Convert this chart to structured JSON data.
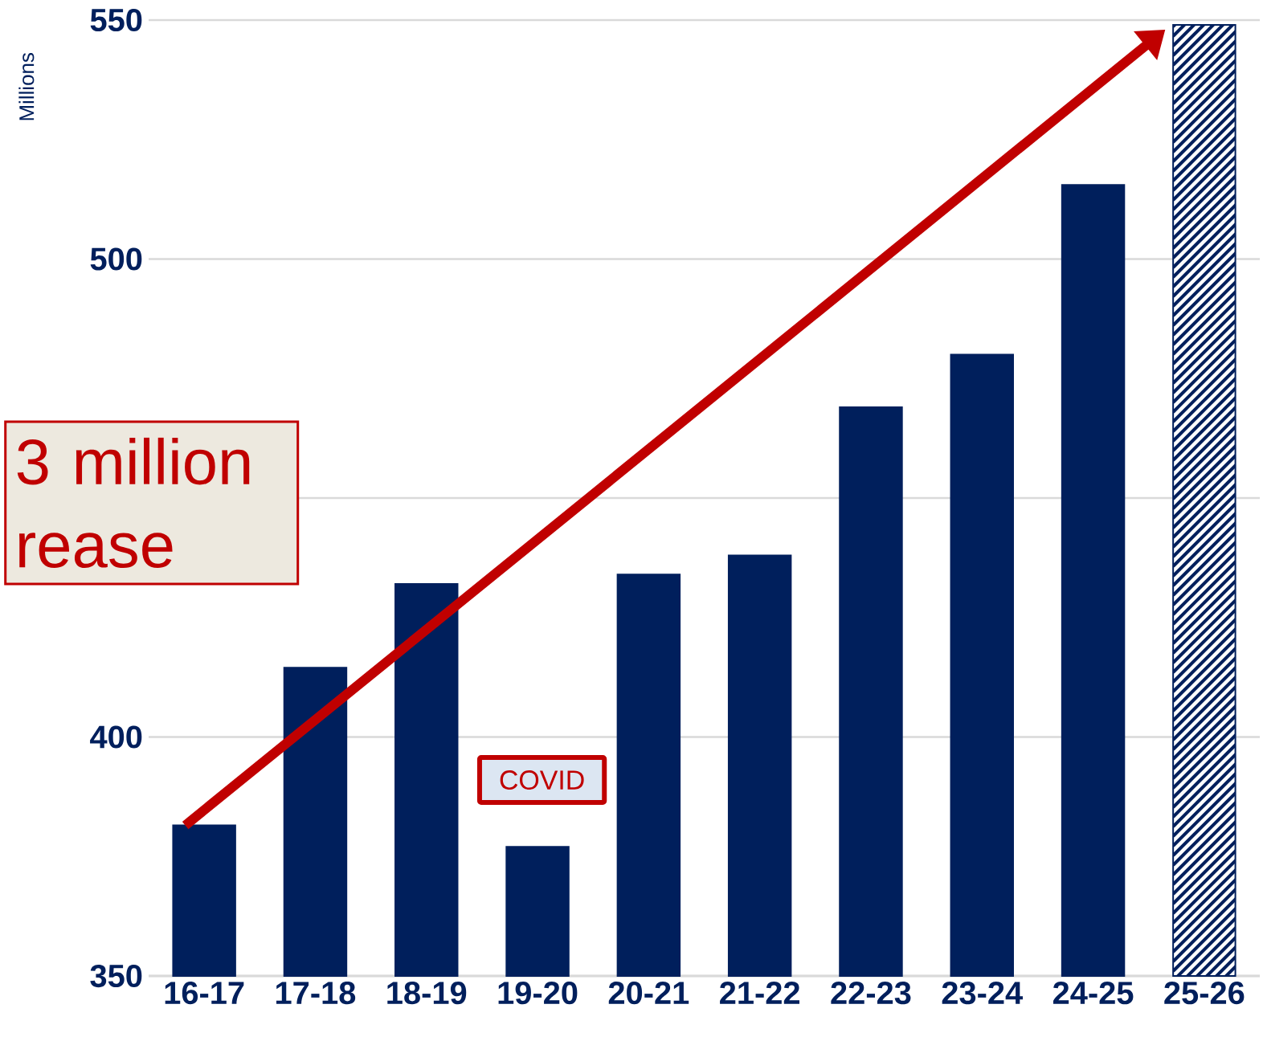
{
  "chart_data": {
    "type": "bar",
    "ylabel": "Millions",
    "categories": [
      "16-17",
      "17-18",
      "18-19",
      "19-20",
      "20-21",
      "21-22",
      "22-23",
      "23-24",
      "24-25",
      "25-26"
    ],
    "values": [
      381.5,
      414.5,
      432,
      377,
      434,
      438,
      469,
      480,
      515.5,
      549
    ],
    "colors": [
      "#001f5c",
      "#001f5c",
      "#001f5c",
      "#001f5c",
      "#001f5c",
      "#001f5c",
      "#001f5c",
      "#001f5c",
      "#001f5c",
      "#ffffff"
    ],
    "ylim": [
      350,
      550
    ],
    "yticks": [
      350,
      400,
      {
        "value": 450,
        "label": null
      },
      500,
      550
    ],
    "grid": "y",
    "annotations": [
      "COVID",
      "3 million rease"
    ]
  }
}
